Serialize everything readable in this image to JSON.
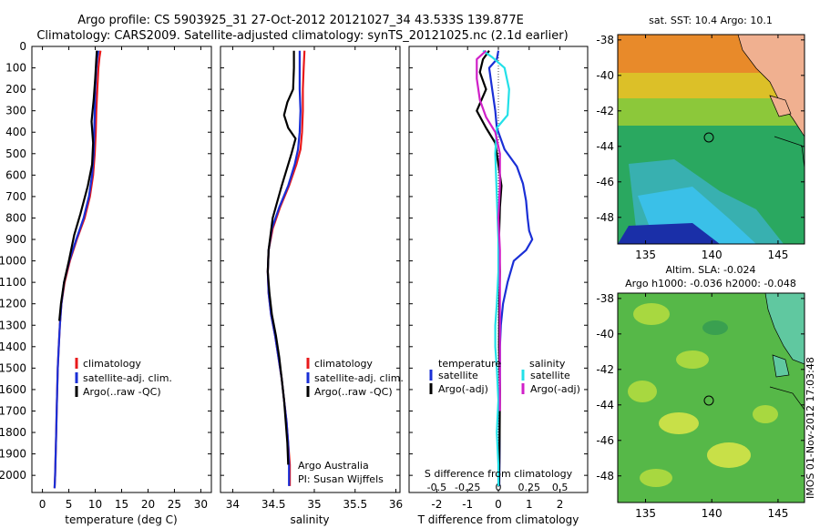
{
  "header": {
    "line1": "Argo profile: CS 5903925_31 27-Oct-2012 20121027_34 43.533S 139.877E",
    "line2": "Climatology: CARS2009. Satellite-adjusted climatology: synTS_20121025.nc (2.1d earlier)"
  },
  "credits": {
    "argo": "Argo Australia",
    "pi": "PI: Susan Wijffels",
    "imos": "IMOS 01-Nov-2012 17:03:48"
  },
  "depth_ticks": [
    0,
    100,
    200,
    300,
    400,
    500,
    600,
    700,
    800,
    900,
    1000,
    1100,
    1200,
    1300,
    1400,
    1500,
    1600,
    1700,
    1800,
    1900,
    2000
  ],
  "legends": {
    "temperature": [
      {
        "label": "climatology",
        "color": "#e8191b"
      },
      {
        "label": "satellite-adj. clim.",
        "color": "#1a2fd6"
      },
      {
        "label": "Argo(..raw -QC)",
        "color": "#000000"
      }
    ],
    "salinity": [
      {
        "label": "climatology",
        "color": "#e8191b"
      },
      {
        "label": "satellite-adj. clim.",
        "color": "#1a2fd6"
      },
      {
        "label": "Argo(..raw -QC)",
        "color": "#000000"
      }
    ],
    "difference": {
      "temperature_title": "temperature",
      "salinity_title": "salinity",
      "temperature": [
        {
          "label": "satellite",
          "color": "#1a2fd6"
        },
        {
          "label": "Argo(-adj)",
          "color": "#000000"
        }
      ],
      "salinity": [
        {
          "label": "satellite",
          "color": "#22e0e8"
        },
        {
          "label": "Argo(-adj)",
          "color": "#d020c8"
        }
      ]
    }
  },
  "maps": {
    "sst": {
      "title": "sat. SST: 10.4  Argo: 10.1",
      "lat_ticks": [
        "-38",
        "-40",
        "-42",
        "-44",
        "-46",
        "-48"
      ],
      "lon_ticks": [
        "135",
        "140",
        "145"
      ]
    },
    "sla": {
      "title1": "Altim. SLA: -0.024",
      "title2": "Argo h1000: -0.036 h2000: -0.048",
      "lat_ticks": [
        "-38",
        "-40",
        "-42",
        "-44",
        "-46",
        "-48"
      ],
      "lon_ticks": [
        "135",
        "140",
        "145"
      ]
    }
  },
  "chart_data": [
    {
      "type": "line",
      "xlabel": "temperature (deg C)",
      "ylabel": "",
      "xlim": [
        -2,
        32
      ],
      "ylim": [
        2080,
        0
      ],
      "xticks": [
        0,
        5,
        10,
        15,
        20,
        25,
        30
      ],
      "series": [
        {
          "name": "climatology",
          "color": "#e8191b",
          "x": [
            11.0,
            10.8,
            10.6,
            10.4,
            10.2,
            10.1,
            9.9,
            9.6,
            9.0,
            8.0,
            6.5,
            5.2,
            4.2,
            3.6,
            3.3,
            3.1,
            2.9,
            2.8,
            2.7,
            2.6,
            2.5,
            2.4,
            2.3
          ],
          "y": [
            20,
            50,
            100,
            200,
            300,
            400,
            500,
            600,
            700,
            800,
            900,
            1000,
            1100,
            1200,
            1300,
            1400,
            1500,
            1600,
            1700,
            1800,
            1900,
            2000,
            2060
          ]
        },
        {
          "name": "satellite-adj. clim.",
          "color": "#1a2fd6",
          "x": [
            10.6,
            10.4,
            10.2,
            10.0,
            9.9,
            9.8,
            9.7,
            9.4,
            8.8,
            7.8,
            6.4,
            5.1,
            4.1,
            3.6,
            3.3,
            3.1,
            2.9,
            2.8,
            2.7,
            2.6,
            2.5,
            2.4,
            2.3
          ],
          "y": [
            20,
            50,
            100,
            200,
            300,
            400,
            500,
            600,
            700,
            800,
            900,
            1000,
            1100,
            1200,
            1300,
            1400,
            1500,
            1600,
            1700,
            1800,
            1900,
            2000,
            2060
          ]
        },
        {
          "name": "Argo(..raw -QC)",
          "color": "#000000",
          "x": [
            10.3,
            10.2,
            10.0,
            9.7,
            9.5,
            9.3,
            9.6,
            9.4,
            8.6,
            7.2,
            6.0,
            5.0,
            4.1,
            3.5,
            3.2
          ],
          "y": [
            20,
            60,
            150,
            250,
            300,
            350,
            450,
            550,
            650,
            780,
            880,
            1000,
            1100,
            1200,
            1280
          ]
        }
      ]
    },
    {
      "type": "line",
      "xlabel": "salinity",
      "ylabel": "",
      "xlim": [
        33.85,
        36.05
      ],
      "ylim": [
        2080,
        0
      ],
      "xticks": [
        34,
        34.5,
        35,
        35.5,
        36
      ],
      "series": [
        {
          "name": "climatology",
          "color": "#e8191b",
          "x": [
            34.88,
            34.87,
            34.86,
            34.86,
            34.85,
            34.83,
            34.78,
            34.69,
            34.58,
            34.49,
            34.44,
            34.43,
            34.44,
            34.47,
            34.52,
            34.56,
            34.6,
            34.63,
            34.66,
            34.68,
            34.7,
            34.7
          ],
          "y": [
            20,
            100,
            200,
            300,
            400,
            480,
            550,
            650,
            750,
            850,
            950,
            1050,
            1150,
            1250,
            1350,
            1450,
            1550,
            1650,
            1750,
            1850,
            1950,
            2050
          ]
        },
        {
          "name": "satellite-adj. clim.",
          "color": "#1a2fd6",
          "x": [
            34.82,
            34.82,
            34.82,
            34.83,
            34.82,
            34.8,
            34.76,
            34.68,
            34.57,
            34.48,
            34.44,
            34.43,
            34.44,
            34.47,
            34.52,
            34.56,
            34.6,
            34.63,
            34.66,
            34.68,
            34.69,
            34.69
          ],
          "y": [
            20,
            100,
            200,
            300,
            400,
            480,
            550,
            650,
            750,
            850,
            950,
            1050,
            1150,
            1250,
            1350,
            1450,
            1550,
            1650,
            1750,
            1850,
            1950,
            2050
          ]
        },
        {
          "name": "Argo(..raw -QC)",
          "color": "#000000",
          "x": [
            34.75,
            34.75,
            34.74,
            34.67,
            34.63,
            34.68,
            34.77,
            34.72,
            34.6,
            34.49,
            34.44,
            34.43,
            34.45,
            34.48,
            34.53,
            34.57,
            34.6,
            34.63,
            34.65,
            34.67,
            34.68
          ],
          "y": [
            20,
            100,
            200,
            260,
            320,
            380,
            430,
            500,
            650,
            800,
            950,
            1050,
            1150,
            1250,
            1350,
            1450,
            1550,
            1650,
            1750,
            1850,
            1950
          ]
        }
      ]
    },
    {
      "type": "line",
      "xlabel": "T difference from climatology",
      "x2label": "S difference from climatology",
      "ylabel": "",
      "xlim": [
        -2.9,
        2.9
      ],
      "ylim": [
        2080,
        0
      ],
      "xticks": [
        -2,
        -1,
        0,
        1,
        2
      ],
      "x2ticks": [
        "-0.5",
        "-0.25",
        "0",
        "0.25",
        "0.5"
      ],
      "series": [
        {
          "name": "temperature satellite",
          "color": "#1a2fd6",
          "x": [
            0.0,
            -0.05,
            -0.3,
            -0.2,
            -0.1,
            -0.05,
            0.2,
            0.6,
            0.8,
            0.9,
            0.95,
            1.0,
            1.05,
            1.1,
            0.9,
            0.5,
            0.3,
            0.15,
            0.08,
            0.05,
            0.05,
            0.04,
            0.04,
            0.03
          ],
          "y": [
            20,
            60,
            100,
            200,
            300,
            380,
            480,
            560,
            640,
            720,
            800,
            860,
            880,
            900,
            950,
            1000,
            1100,
            1200,
            1300,
            1400,
            1550,
            1700,
            1850,
            2050
          ]
        },
        {
          "name": "temperature Argo(-adj)",
          "color": "#000000",
          "x": [
            -0.3,
            -0.5,
            -0.6,
            -0.4,
            -0.7,
            -0.4,
            -0.1,
            0.0,
            0.1,
            0.05,
            0.02,
            0.05,
            0.03,
            0.02,
            0.05,
            0.04,
            0.03,
            0.02
          ],
          "y": [
            20,
            60,
            120,
            200,
            300,
            380,
            450,
            550,
            650,
            750,
            900,
            1050,
            1200,
            1400,
            1600,
            1800,
            1950,
            2050
          ]
        },
        {
          "name": "salinity satellite",
          "color": "#22e0e8",
          "x": [
            -0.5,
            -0.2,
            0.2,
            0.35,
            0.3,
            -0.05,
            -0.1,
            -0.05,
            0.0,
            0.0,
            -0.05,
            -0.1,
            -0.1,
            -0.05,
            0.0,
            -0.05,
            0.0,
            0.0
          ],
          "y": [
            20,
            50,
            100,
            200,
            320,
            380,
            500,
            700,
            900,
            1050,
            1200,
            1300,
            1400,
            1500,
            1650,
            1800,
            1950,
            2050
          ]
        },
        {
          "name": "salinity Argo(-adj)",
          "color": "#d020c8",
          "x": [
            -0.4,
            -0.7,
            -0.7,
            -0.6,
            -0.4,
            -0.1,
            0.05,
            0.05,
            0.0,
            0.05,
            0.05,
            0.05,
            0.05,
            0.05
          ],
          "y": [
            20,
            60,
            150,
            250,
            330,
            400,
            500,
            650,
            800,
            950,
            1100,
            1300,
            1500,
            1700
          ]
        }
      ]
    }
  ]
}
